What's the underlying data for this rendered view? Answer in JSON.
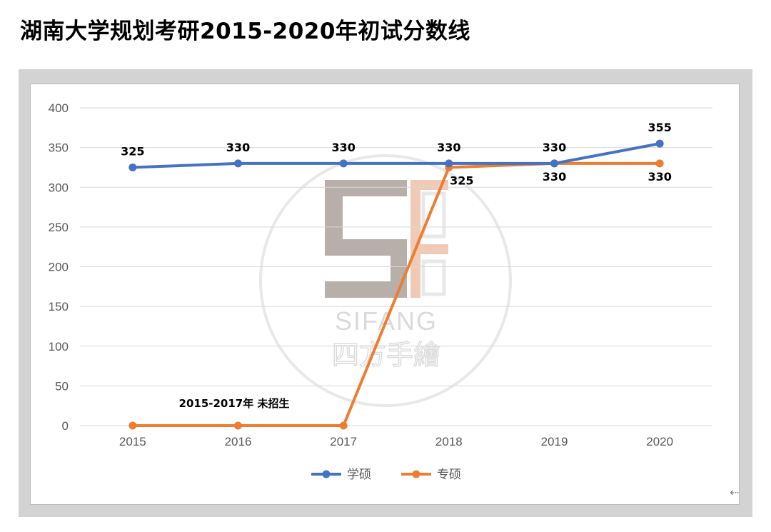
{
  "page": {
    "title": "湖南大学规划考研2015-2020年初试分数线"
  },
  "watermark": {
    "brand_en": "SIFANG",
    "brand_cn": "四方手繪"
  },
  "chart_data": {
    "type": "line",
    "title": "",
    "xlabel": "",
    "ylabel": "",
    "categories": [
      "2015",
      "2016",
      "2017",
      "2018",
      "2019",
      "2020"
    ],
    "ylim": [
      0,
      400
    ],
    "y_ticks": [
      0,
      50,
      100,
      150,
      200,
      250,
      300,
      350,
      400
    ],
    "grid": true,
    "legend_position": "bottom",
    "series": [
      {
        "name": "学硕",
        "color": "#4472c4",
        "values": [
          325,
          330,
          330,
          330,
          330,
          355
        ],
        "labels": [
          "325",
          "330",
          "330",
          "330",
          "330",
          "355"
        ]
      },
      {
        "name": "专硕",
        "color": "#ed7d31",
        "values": [
          0,
          0,
          0,
          325,
          330,
          330
        ],
        "labels": [
          "",
          "",
          "",
          "325",
          "330",
          "330"
        ]
      }
    ],
    "annotation": "2015-2017年 未招生"
  },
  "colors": {
    "frame": "#d3d3d3",
    "grid": "#d9d9d9",
    "axis_text": "#595959"
  }
}
